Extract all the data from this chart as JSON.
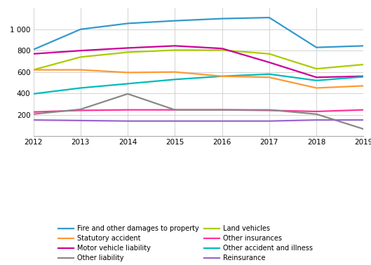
{
  "years": [
    2012,
    2013,
    2014,
    2015,
    2016,
    2017,
    2018,
    2019
  ],
  "series": [
    {
      "label": "Fire and other damages to property",
      "values": [
        810,
        1000,
        1055,
        1080,
        1100,
        1110,
        830,
        845
      ],
      "color": "#3399cc"
    },
    {
      "label": "Land vehicles",
      "values": [
        620,
        740,
        785,
        805,
        805,
        770,
        630,
        670
      ],
      "color": "#aacc00"
    },
    {
      "label": "Motor vehicle liability",
      "values": [
        770,
        800,
        825,
        845,
        820,
        690,
        550,
        560
      ],
      "color": "#cc0099"
    },
    {
      "label": "Other accident and illness",
      "values": [
        395,
        450,
        490,
        530,
        560,
        580,
        520,
        555
      ],
      "color": "#00bbbb"
    },
    {
      "label": "Statutory accident",
      "values": [
        620,
        620,
        595,
        600,
        560,
        550,
        450,
        470
      ],
      "color": "#ff9933"
    },
    {
      "label": "Other insurances",
      "values": [
        225,
        240,
        245,
        245,
        245,
        240,
        230,
        245
      ],
      "color": "#ff3399"
    },
    {
      "label": "Other liability",
      "values": [
        205,
        250,
        395,
        245,
        245,
        245,
        205,
        65
      ],
      "color": "#888888"
    },
    {
      "label": "Reinsurance",
      "values": [
        150,
        145,
        140,
        140,
        140,
        140,
        150,
        150
      ],
      "color": "#9966cc"
    }
  ],
  "ylim": [
    0,
    1200
  ],
  "yticks": [
    200,
    400,
    600,
    800,
    1000
  ],
  "ytick_labels": [
    "200",
    "400",
    "600",
    "800",
    "1 000"
  ],
  "background_color": "#ffffff",
  "grid_color": "#cccccc",
  "linewidth": 1.6,
  "fontsize": 7.5
}
